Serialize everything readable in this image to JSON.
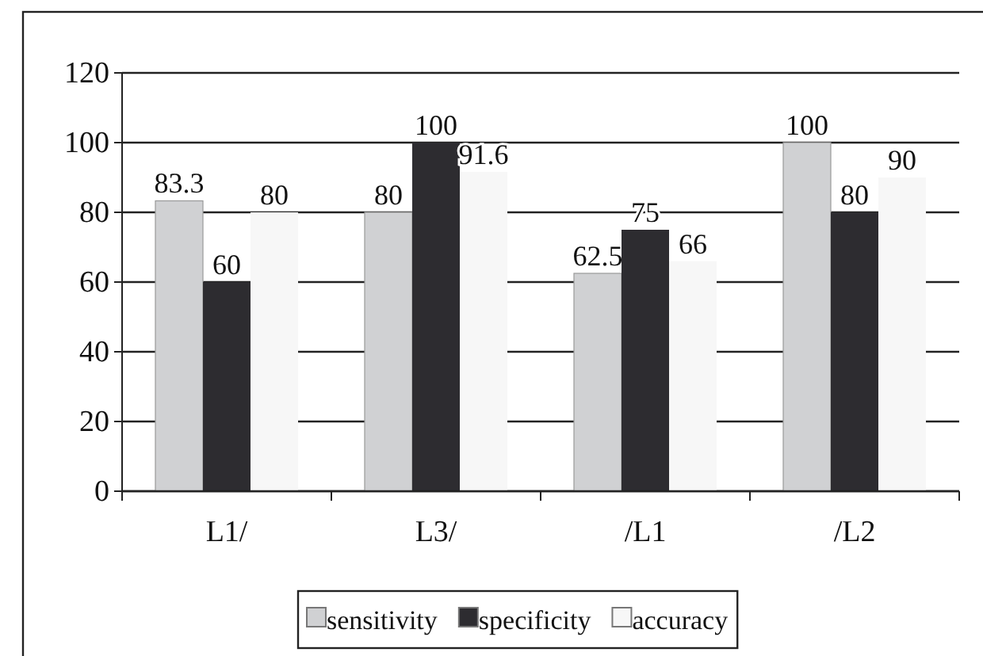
{
  "chart_data": {
    "type": "bar",
    "categories": [
      "L1/",
      "L3/",
      "/L1",
      "/L2"
    ],
    "series": [
      {
        "name": "sensitivity",
        "color": "#d0d1d3",
        "values": [
          83.3,
          80,
          62.5,
          100
        ]
      },
      {
        "name": "specificity",
        "color": "#2d2c30",
        "values": [
          60,
          100,
          75,
          80
        ]
      },
      {
        "name": "accuracy",
        "color": "#f7f7f7",
        "values": [
          80,
          91.6,
          66,
          90
        ]
      }
    ],
    "ylim": [
      0,
      120
    ],
    "yticks": [
      0,
      20,
      40,
      60,
      80,
      100,
      120
    ],
    "grid": "y",
    "data_labels": true,
    "legend": "bottom"
  }
}
